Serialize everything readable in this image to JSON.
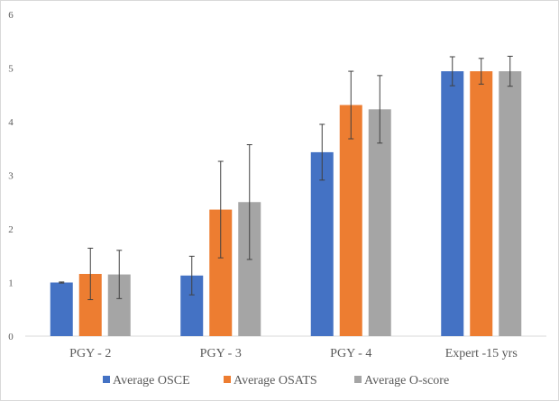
{
  "chart_data": {
    "type": "bar",
    "title": "",
    "xlabel": "",
    "ylabel": "",
    "ylim": [
      0,
      6
    ],
    "yticks": [
      "0",
      "1",
      "2",
      "3",
      "4",
      "5",
      "6"
    ],
    "grid": false,
    "legend_position": "bottom",
    "categories": [
      "PGY - 2",
      "PGY - 3",
      "PGY - 4",
      "Expert -15 yrs"
    ],
    "series": [
      {
        "name": "Average OSCE",
        "color": "#4472c4",
        "values": [
          1.0,
          1.13,
          3.43,
          4.94
        ],
        "errors": [
          0.01,
          0.36,
          0.52,
          0.27
        ]
      },
      {
        "name": "Average OSATS",
        "color": "#ed7d31",
        "values": [
          1.16,
          2.36,
          4.31,
          4.94
        ],
        "errors": [
          0.48,
          0.9,
          0.63,
          0.24
        ]
      },
      {
        "name": "Average O-score",
        "color": "#a5a5a5",
        "values": [
          1.15,
          2.5,
          4.23,
          4.94
        ],
        "errors": [
          0.45,
          1.07,
          0.63,
          0.28
        ]
      }
    ]
  }
}
